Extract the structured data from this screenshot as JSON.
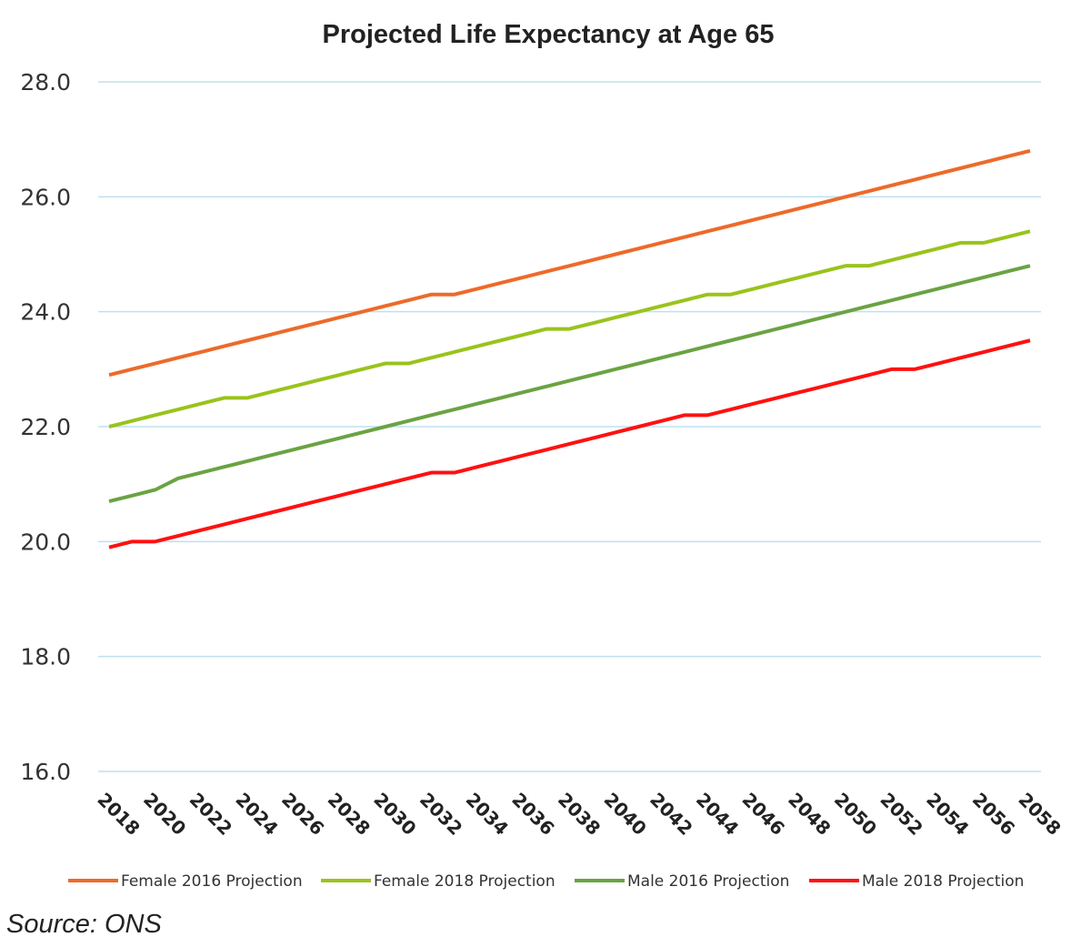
{
  "chart_data": {
    "type": "line",
    "title": "Projected Life Expectancy at Age 65",
    "xlabel": "",
    "ylabel": "",
    "ylim": [
      16.0,
      28.0
    ],
    "yticks": [
      "16.0",
      "18.0",
      "20.0",
      "22.0",
      "24.0",
      "26.0",
      "28.0"
    ],
    "xlim": [
      2018,
      2058
    ],
    "grid": true,
    "legend_position": "bottom",
    "x": [
      2018,
      2019,
      2020,
      2021,
      2022,
      2023,
      2024,
      2025,
      2026,
      2027,
      2028,
      2029,
      2030,
      2031,
      2032,
      2033,
      2034,
      2035,
      2036,
      2037,
      2038,
      2039,
      2040,
      2041,
      2042,
      2043,
      2044,
      2045,
      2046,
      2047,
      2048,
      2049,
      2050,
      2051,
      2052,
      2053,
      2054,
      2055,
      2056,
      2057,
      2058
    ],
    "xticks": [
      "2018",
      "2020",
      "2022",
      "2024",
      "2026",
      "2028",
      "2030",
      "2032",
      "2034",
      "2036",
      "2038",
      "2040",
      "2042",
      "2044",
      "2046",
      "2048",
      "2050",
      "2052",
      "2054",
      "2056",
      "2058"
    ],
    "series": [
      {
        "name": "Female 2016 Projection",
        "color": "#ED6A2A",
        "values": [
          22.9,
          23.0,
          23.1,
          23.2,
          23.3,
          23.4,
          23.5,
          23.6,
          23.7,
          23.8,
          23.9,
          24.0,
          24.1,
          24.2,
          24.3,
          24.3,
          24.4,
          24.5,
          24.6,
          24.7,
          24.8,
          24.9,
          25.0,
          25.1,
          25.2,
          25.3,
          25.4,
          25.5,
          25.6,
          25.7,
          25.8,
          25.9,
          26.0,
          26.1,
          26.2,
          26.3,
          26.4,
          26.5,
          26.6,
          26.7,
          26.8
        ]
      },
      {
        "name": "Female 2018 Projection",
        "color": "#9AC31C",
        "values": [
          22.0,
          22.1,
          22.2,
          22.3,
          22.4,
          22.5,
          22.5,
          22.6,
          22.7,
          22.8,
          22.9,
          23.0,
          23.1,
          23.1,
          23.2,
          23.3,
          23.4,
          23.5,
          23.6,
          23.7,
          23.7,
          23.8,
          23.9,
          24.0,
          24.1,
          24.2,
          24.3,
          24.3,
          24.4,
          24.5,
          24.6,
          24.7,
          24.8,
          24.8,
          24.9,
          25.0,
          25.1,
          25.2,
          25.2,
          25.3,
          25.4
        ]
      },
      {
        "name": "Male 2016 Projection",
        "color": "#6AA343",
        "values": [
          20.7,
          20.8,
          20.9,
          21.1,
          21.2,
          21.3,
          21.4,
          21.5,
          21.6,
          21.7,
          21.8,
          21.9,
          22.0,
          22.1,
          22.2,
          22.3,
          22.4,
          22.5,
          22.6,
          22.7,
          22.8,
          22.9,
          23.0,
          23.1,
          23.2,
          23.3,
          23.4,
          23.5,
          23.6,
          23.7,
          23.8,
          23.9,
          24.0,
          24.1,
          24.2,
          24.3,
          24.4,
          24.5,
          24.6,
          24.7,
          24.8
        ]
      },
      {
        "name": "Male 2018 Projection",
        "color": "#FF1010",
        "values": [
          19.9,
          20.0,
          20.0,
          20.1,
          20.2,
          20.3,
          20.4,
          20.5,
          20.6,
          20.7,
          20.8,
          20.9,
          21.0,
          21.1,
          21.2,
          21.2,
          21.3,
          21.4,
          21.5,
          21.6,
          21.7,
          21.8,
          21.9,
          22.0,
          22.1,
          22.2,
          22.2,
          22.3,
          22.4,
          22.5,
          22.6,
          22.7,
          22.8,
          22.9,
          23.0,
          23.0,
          23.1,
          23.2,
          23.3,
          23.4,
          23.5
        ]
      }
    ],
    "gridline_color": "#BFE0F0"
  },
  "source": "Source: ONS"
}
